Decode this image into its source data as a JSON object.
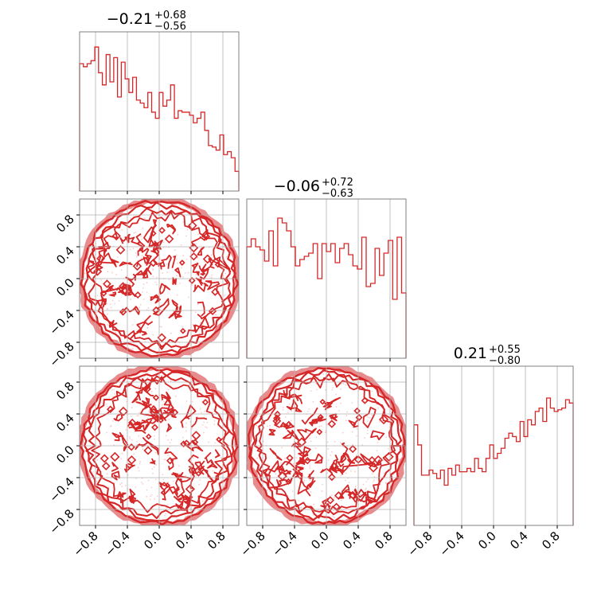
{
  "chart_data": {
    "type": "corner",
    "color": "#d62728",
    "fill_color": "#e88b8d",
    "grid": true,
    "axis_range": [
      -1.0,
      1.0
    ],
    "tick_values": [
      -0.8,
      -0.4,
      0.0,
      0.4,
      0.8
    ],
    "tick_labels": [
      "−0.8",
      "−0.4",
      "0.0",
      "0.4",
      "0.8"
    ],
    "parameters": [
      {
        "median": "−0.21",
        "plus": "+0.68",
        "minus": "−0.56",
        "histogram": [
          0.84,
          0.82,
          0.84,
          0.86,
          0.95,
          0.78,
          0.7,
          0.9,
          0.72,
          0.88,
          0.62,
          0.85,
          0.74,
          0.65,
          0.75,
          0.6,
          0.58,
          0.55,
          0.65,
          0.52,
          0.48,
          0.65,
          0.56,
          0.6,
          0.7,
          0.48,
          0.53,
          0.52,
          0.52,
          0.5,
          0.45,
          0.48,
          0.52,
          0.4,
          0.3,
          0.29,
          0.27,
          0.37,
          0.24,
          0.26,
          0.22,
          0.13
        ],
        "hist_max": 1.05
      },
      {
        "median": "−0.06",
        "plus": "+0.72",
        "minus": "−0.63",
        "histogram": [
          0.7,
          0.75,
          0.7,
          0.68,
          0.61,
          0.8,
          0.58,
          0.88,
          0.85,
          0.8,
          0.7,
          0.58,
          0.62,
          0.64,
          0.66,
          0.72,
          0.5,
          0.72,
          0.67,
          0.72,
          0.6,
          0.69,
          0.72,
          0.65,
          0.58,
          0.56,
          0.76,
          0.45,
          0.47,
          0.69,
          0.52,
          0.66,
          0.74,
          0.37,
          0.76,
          0.41
        ],
        "hist_max": 1.0
      },
      {
        "median": "0.21",
        "plus": "+0.55",
        "minus": "−0.80",
        "histogram": [
          0.6,
          0.48,
          0.3,
          0.3,
          0.33,
          0.31,
          0.28,
          0.33,
          0.24,
          0.34,
          0.3,
          0.36,
          0.32,
          0.32,
          0.34,
          0.32,
          0.4,
          0.34,
          0.32,
          0.4,
          0.48,
          0.4,
          0.43,
          0.46,
          0.52,
          0.55,
          0.53,
          0.5,
          0.62,
          0.53,
          0.63,
          0.6,
          0.68,
          0.7,
          0.62,
          0.76,
          0.7,
          0.68,
          0.69,
          0.7,
          0.75,
          0.73
        ],
        "hist_max": 0.95
      }
    ],
    "panels_2d": [
      {
        "row": 1,
        "col": 0
      },
      {
        "row": 2,
        "col": 0
      },
      {
        "row": 2,
        "col": 1
      }
    ]
  }
}
